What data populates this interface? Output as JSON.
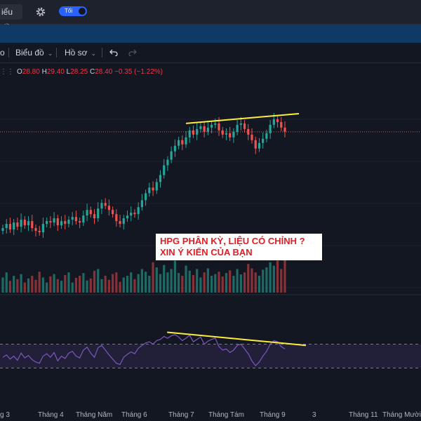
{
  "header": {
    "chart_button_label": "iểu đồ",
    "theme_toggle_label": "Tối",
    "gear_icon": "gear-icon"
  },
  "toolbar": {
    "left_fragment": "o",
    "chart_menu_label": "Biểu đồ",
    "profile_menu_label": "Hồ sơ",
    "undo_icon": "undo-icon",
    "redo_icon": "redo-icon"
  },
  "ohlc": {
    "open_label": "O",
    "open": "28.80",
    "high_label": "H",
    "high": "29.40",
    "low_label": "L",
    "low": "28.25",
    "close_label": "C",
    "close": "28.40",
    "change": "−0.35",
    "change_pct": "(−1.22%)"
  },
  "annotation": {
    "line1": "HPG PHÂN KỲ, LIỆU CÓ CHỈNH ?",
    "line2": "XIN Ý KIẾN CỦA BẠN"
  },
  "x_axis": [
    "g 3",
    "Tháng 4",
    "Tháng Năm",
    "Tháng 6",
    "Tháng 7",
    "Tháng Tám",
    "Tháng 9",
    "3",
    "Tháng 11",
    "Tháng Mười hai"
  ],
  "colors": {
    "up": "#26a69a",
    "down": "#ef5350",
    "trendline": "#ffeb3b",
    "rsi": "#7e57c2",
    "accent": "#2962ff"
  },
  "chart_data": {
    "type": "candlestick",
    "symbol": "HPG",
    "current_price": 28.4,
    "price": [
      21.5,
      21.8,
      21.4,
      21.9,
      21.6,
      22.1,
      21.7,
      22.0,
      21.5,
      21.3,
      21.2,
      21.8,
      22.0,
      21.9,
      22.2,
      21.7,
      22.0,
      21.8,
      22.1,
      22.3,
      22.0,
      21.9,
      22.4,
      22.8,
      22.5,
      22.2,
      22.9,
      23.3,
      23.1,
      22.8,
      22.5,
      22.0,
      21.8,
      22.2,
      22.4,
      22.6,
      22.5,
      23.0,
      23.5,
      24.0,
      24.4,
      24.2,
      24.8,
      25.3,
      26.0,
      26.4,
      27.0,
      27.4,
      27.8,
      27.5,
      28.0,
      28.5,
      28.2,
      28.6,
      28.8,
      28.4,
      28.7,
      28.9,
      29.0,
      28.5,
      28.2,
      28.3,
      28.0,
      28.4,
      28.9,
      29.0,
      28.6,
      28.2,
      27.8,
      27.2,
      27.6,
      27.9,
      28.3,
      28.9,
      29.3,
      29.1,
      28.7,
      28.4
    ],
    "volume": [
      0.45,
      0.6,
      0.35,
      0.5,
      0.4,
      0.55,
      0.3,
      0.42,
      0.5,
      0.38,
      0.62,
      0.45,
      0.3,
      0.48,
      0.55,
      0.4,
      0.35,
      0.52,
      0.6,
      0.3,
      0.44,
      0.5,
      0.58,
      0.36,
      0.42,
      0.65,
      0.7,
      0.4,
      0.5,
      0.38,
      0.55,
      0.6,
      0.32,
      0.45,
      0.5,
      0.6,
      0.4,
      0.55,
      0.7,
      0.62,
      0.5,
      0.9,
      0.75,
      0.55,
      0.82,
      0.6,
      0.7,
      0.95,
      0.58,
      0.5,
      0.8,
      0.65,
      0.52,
      0.7,
      0.45,
      0.6,
      0.72,
      0.5,
      0.55,
      0.62,
      0.48,
      0.58,
      0.66,
      0.5,
      0.7,
      0.54,
      0.6,
      0.85,
      0.72,
      0.6,
      0.5,
      0.68,
      0.75,
      0.9,
      0.8,
      0.95,
      0.7,
      1.0
    ],
    "rsi": [
      48,
      52,
      45,
      50,
      43,
      55,
      47,
      51,
      44,
      40,
      38,
      50,
      54,
      48,
      56,
      42,
      50,
      46,
      55,
      58,
      50,
      47,
      60,
      65,
      55,
      48,
      64,
      68,
      60,
      52,
      45,
      38,
      36,
      48,
      53,
      57,
      54,
      63,
      68,
      72,
      74,
      70,
      76,
      78,
      83,
      80,
      84,
      86,
      82,
      76,
      80,
      85,
      74,
      78,
      82,
      70,
      75,
      78,
      80,
      66,
      60,
      62,
      56,
      60,
      68,
      70,
      62,
      54,
      42,
      34,
      40,
      50,
      58,
      70,
      76,
      74,
      66,
      62
    ],
    "rsi_levels": [
      70,
      30
    ],
    "price_trendline": [
      29.0,
      29.7
    ],
    "rsi_trendline": [
      90,
      68
    ]
  }
}
